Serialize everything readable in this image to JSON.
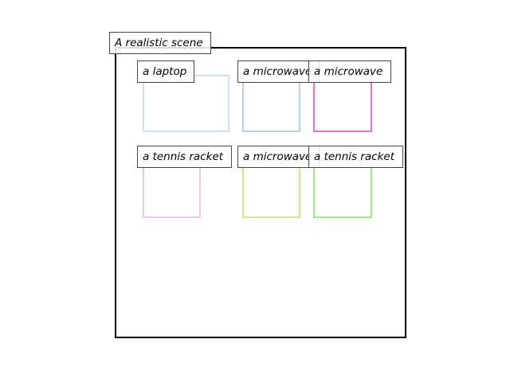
{
  "scene": {
    "caption": "A realistic scene"
  },
  "objects": [
    {
      "label": "a laptop",
      "color": "#cfe0f3"
    },
    {
      "label": "a microwave",
      "color": "#b7d2dc"
    },
    {
      "label": "a microwave",
      "color": "#ee6fca"
    },
    {
      "label": "a tennis racket",
      "color": "#e9c4eb"
    },
    {
      "label": "a microwave",
      "color": "#c9eb8e"
    },
    {
      "label": "a tennis racket",
      "color": "#9de87a"
    }
  ]
}
